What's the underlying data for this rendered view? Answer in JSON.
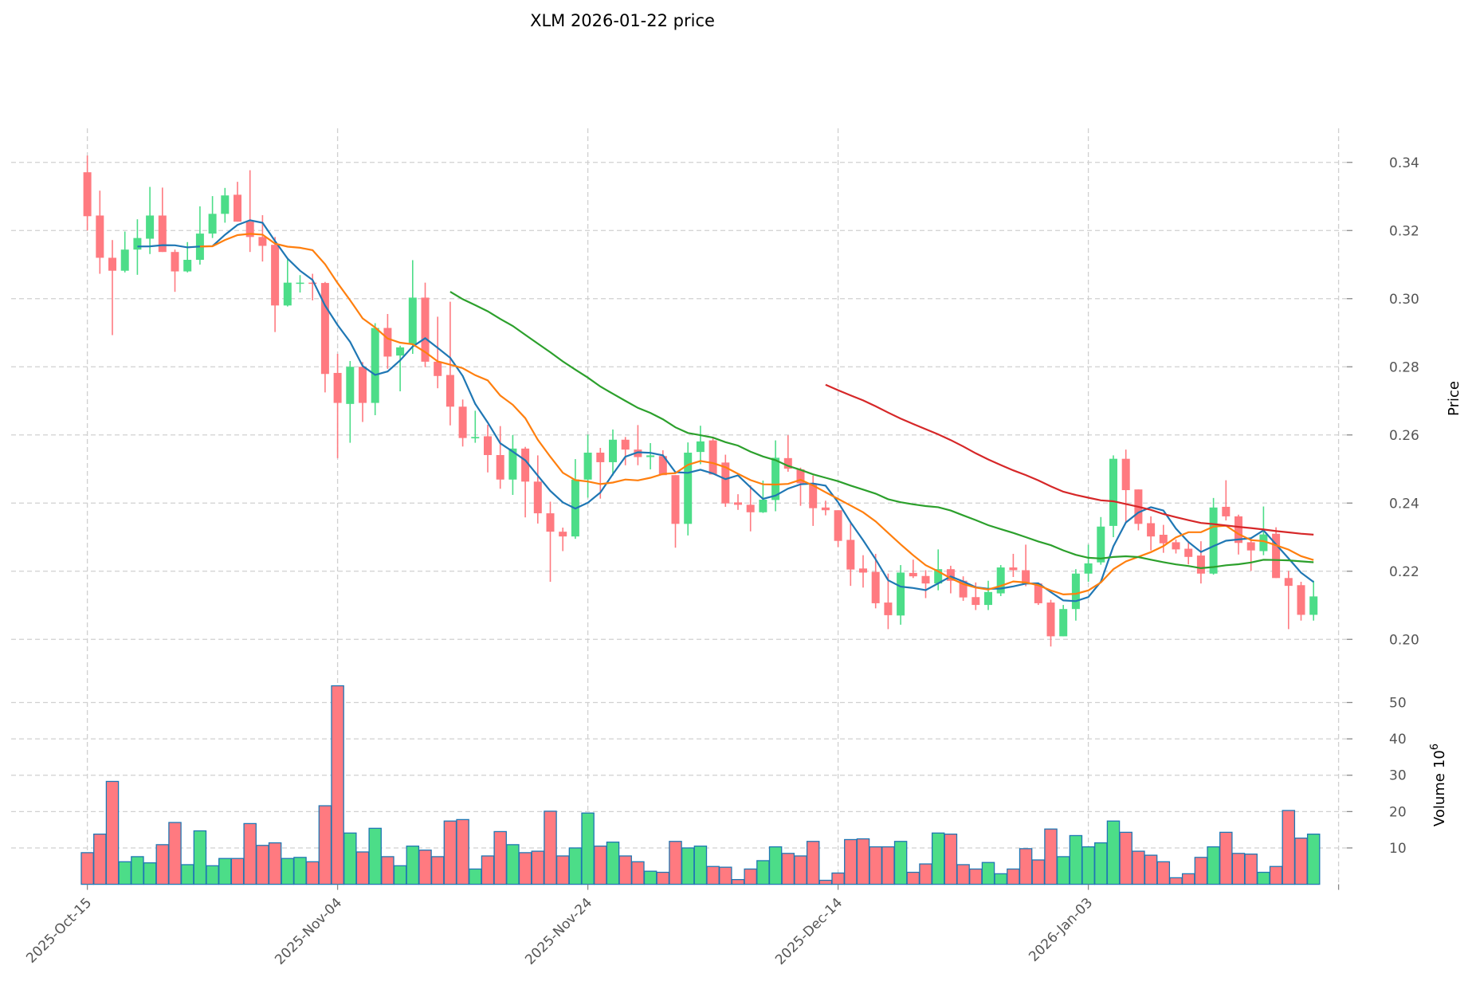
{
  "chart_data": {
    "type": "candlestick",
    "title": "XLM  2026-01-22  price",
    "ylabel": "Price",
    "volume_label": "Volume",
    "volume_exponent": "10",
    "volume_exponent_power": "6",
    "start_date": "2025-10-15",
    "interval": "1 day",
    "ylim": [
      0.19,
      0.35
    ],
    "volume_ylim": [
      0,
      58
    ],
    "yticks": [
      "0.20",
      "0.22",
      "0.24",
      "0.26",
      "0.28",
      "0.30",
      "0.32",
      "0.34"
    ],
    "volume_yticks": [
      "10",
      "20",
      "30",
      "40",
      "50"
    ],
    "xticks": [
      {
        "index": 0,
        "label": "2025-Oct-15"
      },
      {
        "index": 20,
        "label": "2025-Nov-04"
      },
      {
        "index": 40,
        "label": "2025-Nov-24"
      },
      {
        "index": 60,
        "label": "2025-Dec-14"
      },
      {
        "index": 80,
        "label": "2026-Jan-03"
      },
      {
        "index": 100,
        "label": ""
      }
    ],
    "grid": true,
    "colors": {
      "up": "#4cdd88",
      "down": "#ff7a80",
      "volume_edge": "#1f77b4",
      "ma": [
        "#1f77b4",
        "#ff7f0e",
        "#2ca02c",
        "#d62728"
      ]
    },
    "ma_periods": [
      5,
      10,
      30,
      60
    ],
    "candles_columns": [
      "open",
      "high",
      "low",
      "close",
      "volume_millions"
    ],
    "candles": [
      [
        0.3371,
        0.342,
        0.32,
        0.3242,
        8.7
      ],
      [
        0.3244,
        0.3317,
        0.3073,
        0.312,
        13.8
      ],
      [
        0.312,
        0.3172,
        0.2893,
        0.3082,
        28.3
      ],
      [
        0.3082,
        0.3197,
        0.3077,
        0.3144,
        6.2
      ],
      [
        0.3144,
        0.3233,
        0.307,
        0.3178,
        7.6
      ],
      [
        0.3176,
        0.3328,
        0.3131,
        0.3244,
        5.9
      ],
      [
        0.3244,
        0.3326,
        0.3137,
        0.3137,
        10.9
      ],
      [
        0.3137,
        0.3144,
        0.302,
        0.308,
        17.0
      ],
      [
        0.308,
        0.3166,
        0.3077,
        0.3114,
        5.4
      ],
      [
        0.3114,
        0.3271,
        0.31,
        0.3191,
        14.7
      ],
      [
        0.3191,
        0.3301,
        0.3178,
        0.3249,
        5.1
      ],
      [
        0.3249,
        0.3325,
        0.3223,
        0.3303,
        7.1
      ],
      [
        0.3305,
        0.3343,
        0.3226,
        0.3226,
        7.1
      ],
      [
        0.3226,
        0.3377,
        0.3137,
        0.3181,
        16.7
      ],
      [
        0.3181,
        0.3245,
        0.3109,
        0.3155,
        10.7
      ],
      [
        0.3158,
        0.3181,
        0.2902,
        0.298,
        11.4
      ],
      [
        0.298,
        0.3115,
        0.2977,
        0.3047,
        7.1
      ],
      [
        0.3045,
        0.3069,
        0.3018,
        0.3047,
        7.4
      ],
      [
        0.3047,
        0.3073,
        0.2995,
        0.3045,
        6.2
      ],
      [
        0.3046,
        0.3049,
        0.2725,
        0.2779,
        21.6
      ],
      [
        0.2782,
        0.2838,
        0.2532,
        0.2694,
        54.6
      ],
      [
        0.2691,
        0.2817,
        0.2577,
        0.28,
        14.1
      ],
      [
        0.28,
        0.2814,
        0.2638,
        0.2694,
        8.9
      ],
      [
        0.2694,
        0.2928,
        0.2658,
        0.2914,
        15.4
      ],
      [
        0.2914,
        0.2955,
        0.2794,
        0.283,
        7.6
      ],
      [
        0.2833,
        0.2862,
        0.2728,
        0.2857,
        5.1
      ],
      [
        0.2865,
        0.3113,
        0.2838,
        0.3003,
        10.5
      ],
      [
        0.3003,
        0.3047,
        0.2799,
        0.2815,
        9.4
      ],
      [
        0.2815,
        0.2947,
        0.2737,
        0.2773,
        7.6
      ],
      [
        0.2776,
        0.2991,
        0.2628,
        0.2683,
        17.4
      ],
      [
        0.2683,
        0.2704,
        0.2566,
        0.2591,
        17.8
      ],
      [
        0.259,
        0.2671,
        0.2577,
        0.2594,
        4.2
      ],
      [
        0.2596,
        0.263,
        0.249,
        0.2541,
        7.8
      ],
      [
        0.2541,
        0.2626,
        0.2442,
        0.2469,
        14.5
      ],
      [
        0.2469,
        0.26,
        0.2424,
        0.256,
        10.9
      ],
      [
        0.256,
        0.2565,
        0.2358,
        0.2463,
        8.7
      ],
      [
        0.2463,
        0.254,
        0.234,
        0.237,
        9.1
      ],
      [
        0.237,
        0.2404,
        0.2169,
        0.2316,
        20.1
      ],
      [
        0.2316,
        0.2328,
        0.2259,
        0.2302,
        7.8
      ],
      [
        0.2302,
        0.2529,
        0.2295,
        0.2469,
        10.0
      ],
      [
        0.2469,
        0.2601,
        0.2416,
        0.2548,
        19.6
      ],
      [
        0.2548,
        0.2562,
        0.2413,
        0.252,
        10.5
      ],
      [
        0.252,
        0.2616,
        0.2481,
        0.2586,
        11.6
      ],
      [
        0.2586,
        0.2594,
        0.2511,
        0.2557,
        7.8
      ],
      [
        0.2557,
        0.2629,
        0.2511,
        0.2535,
        6.2
      ],
      [
        0.2535,
        0.2576,
        0.2499,
        0.254,
        3.6
      ],
      [
        0.2538,
        0.2555,
        0.2482,
        0.2482,
        3.3
      ],
      [
        0.2482,
        0.2482,
        0.2269,
        0.2339,
        11.8
      ],
      [
        0.2339,
        0.2578,
        0.2305,
        0.2548,
        10.0
      ],
      [
        0.255,
        0.2627,
        0.2514,
        0.2581,
        10.5
      ],
      [
        0.2584,
        0.2591,
        0.2484,
        0.2484,
        4.9
      ],
      [
        0.2519,
        0.2542,
        0.2389,
        0.2399,
        4.7
      ],
      [
        0.2402,
        0.2426,
        0.238,
        0.2395,
        1.3
      ],
      [
        0.2395,
        0.2452,
        0.2317,
        0.2373,
        4.2
      ],
      [
        0.2373,
        0.2466,
        0.2371,
        0.241,
        6.5
      ],
      [
        0.2409,
        0.2584,
        0.2376,
        0.2533,
        10.3
      ],
      [
        0.2532,
        0.2599,
        0.2492,
        0.2501,
        8.5
      ],
      [
        0.2499,
        0.2504,
        0.2392,
        0.2458,
        7.8
      ],
      [
        0.2458,
        0.2481,
        0.2333,
        0.2385,
        11.8
      ],
      [
        0.2387,
        0.2407,
        0.2364,
        0.2379,
        1.1
      ],
      [
        0.2379,
        0.2379,
        0.2271,
        0.2289,
        3.1
      ],
      [
        0.2292,
        0.2341,
        0.2157,
        0.2205,
        12.3
      ],
      [
        0.2208,
        0.2247,
        0.2152,
        0.2196,
        12.5
      ],
      [
        0.2198,
        0.2251,
        0.2091,
        0.2106,
        10.3
      ],
      [
        0.2108,
        0.2193,
        0.203,
        0.2071,
        10.3
      ],
      [
        0.207,
        0.2218,
        0.2043,
        0.2196,
        11.8
      ],
      [
        0.2195,
        0.2234,
        0.218,
        0.2185,
        3.3
      ],
      [
        0.2186,
        0.2203,
        0.2121,
        0.2164,
        5.6
      ],
      [
        0.2164,
        0.2264,
        0.2144,
        0.2206,
        14.1
      ],
      [
        0.2206,
        0.2216,
        0.2135,
        0.2172,
        13.8
      ],
      [
        0.2172,
        0.2185,
        0.2113,
        0.2123,
        5.4
      ],
      [
        0.2124,
        0.2167,
        0.2086,
        0.2101,
        4.2
      ],
      [
        0.2101,
        0.2172,
        0.2086,
        0.2139,
        6.0
      ],
      [
        0.2135,
        0.2218,
        0.2127,
        0.2211,
        2.9
      ],
      [
        0.2211,
        0.2251,
        0.2183,
        0.2203,
        4.2
      ],
      [
        0.2203,
        0.2278,
        0.2156,
        0.2164,
        9.8
      ],
      [
        0.2164,
        0.2164,
        0.2101,
        0.2106,
        6.7
      ],
      [
        0.2108,
        0.2116,
        0.1979,
        0.2009,
        15.2
      ],
      [
        0.2009,
        0.2101,
        0.2009,
        0.2089,
        7.6
      ],
      [
        0.2089,
        0.2206,
        0.2055,
        0.2193,
        13.4
      ],
      [
        0.2193,
        0.2278,
        0.2169,
        0.2223,
        10.3
      ],
      [
        0.2226,
        0.2359,
        0.2219,
        0.2331,
        11.4
      ],
      [
        0.2333,
        0.254,
        0.23,
        0.253,
        17.4
      ],
      [
        0.253,
        0.2557,
        0.2343,
        0.2438,
        14.3
      ],
      [
        0.244,
        0.244,
        0.232,
        0.2339,
        9.1
      ],
      [
        0.2341,
        0.2361,
        0.2261,
        0.2302,
        8.0
      ],
      [
        0.2307,
        0.2336,
        0.2254,
        0.2282,
        6.2
      ],
      [
        0.2285,
        0.2293,
        0.2252,
        0.2264,
        1.8
      ],
      [
        0.2266,
        0.2285,
        0.222,
        0.2242,
        2.9
      ],
      [
        0.2246,
        0.2288,
        0.2164,
        0.2193,
        7.4
      ],
      [
        0.2193,
        0.2415,
        0.219,
        0.2387,
        10.3
      ],
      [
        0.2389,
        0.2467,
        0.2349,
        0.2361,
        14.3
      ],
      [
        0.2361,
        0.2366,
        0.2249,
        0.2283,
        8.5
      ],
      [
        0.2285,
        0.2295,
        0.2201,
        0.2261,
        8.3
      ],
      [
        0.2259,
        0.239,
        0.2247,
        0.2308,
        3.3
      ],
      [
        0.231,
        0.2329,
        0.218,
        0.218,
        4.9
      ],
      [
        0.218,
        0.2201,
        0.203,
        0.2157,
        20.3
      ],
      [
        0.2159,
        0.2169,
        0.2055,
        0.2072,
        12.7
      ],
      [
        0.2072,
        0.2172,
        0.2055,
        0.2126,
        13.8
      ]
    ]
  }
}
